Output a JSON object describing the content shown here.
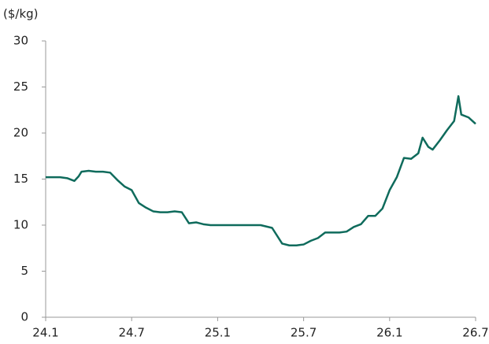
{
  "chart_data": {
    "type": "line",
    "y_label": "($/kg)",
    "x": [
      0,
      0.5,
      1,
      1.5,
      2,
      2.3,
      2.5,
      3,
      3.5,
      4,
      4.5,
      5,
      5.5,
      6,
      6.5,
      7,
      7.5,
      8,
      8.5,
      9,
      9.5,
      10,
      10.5,
      11,
      11.5,
      12,
      13,
      14,
      15,
      15.8,
      16.5,
      17,
      17.5,
      18,
      18.5,
      19,
      19.5,
      20,
      20.5,
      21,
      21.5,
      22,
      22.5,
      23,
      23.5,
      24,
      24.5,
      25,
      25.5,
      26,
      26.3,
      26.7,
      27,
      27.5,
      28,
      28.5,
      28.8,
      29,
      29.5,
      30
    ],
    "series": [
      {
        "color": "#0f6b5c",
        "values": [
          15.2,
          15.2,
          15.2,
          15.1,
          14.8,
          15.3,
          15.8,
          15.9,
          15.8,
          15.8,
          15.7,
          14.9,
          14.2,
          13.8,
          12.4,
          11.9,
          11.5,
          11.4,
          11.4,
          11.5,
          11.4,
          10.2,
          10.3,
          10.1,
          10.0,
          10.0,
          10.0,
          10.0,
          10.0,
          9.7,
          8.0,
          7.8,
          7.8,
          7.9,
          8.3,
          8.6,
          9.2,
          9.2,
          9.2,
          9.3,
          9.8,
          10.1,
          11.0,
          11.0,
          11.8,
          13.8,
          15.2,
          17.3,
          17.2,
          17.8,
          19.5,
          18.5,
          18.2,
          19.2,
          20.3,
          21.3,
          24.0,
          22.0,
          21.7,
          21.0
        ]
      }
    ],
    "xlim": [
      0,
      30
    ],
    "xticks": [
      {
        "value": 0,
        "label": "24.1"
      },
      {
        "value": 6,
        "label": "24.7"
      },
      {
        "value": 12,
        "label": "25.1"
      },
      {
        "value": 18,
        "label": "25.7"
      },
      {
        "value": 24,
        "label": "26.1"
      },
      {
        "value": 30,
        "label": "26.7"
      }
    ],
    "ylim": [
      0,
      30
    ],
    "yticks": [
      0,
      5,
      10,
      15,
      20,
      25,
      30
    ]
  }
}
